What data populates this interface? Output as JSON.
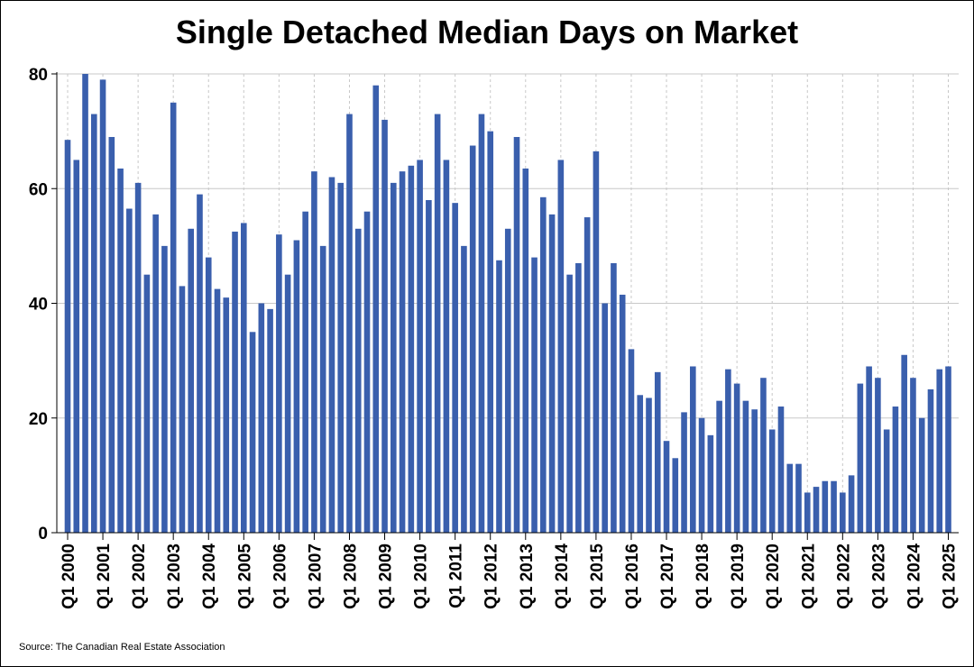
{
  "chart_data": {
    "type": "bar",
    "title": "Single Detached Median Days on Market",
    "xlabel": "",
    "ylabel": "",
    "ylim": [
      0,
      80
    ],
    "yticks": [
      0,
      20,
      40,
      60,
      80
    ],
    "grid": true,
    "bar_color": "#3a5fad",
    "x_tick_labels": [
      "Q1 2000",
      "Q1 2001",
      "Q1 2002",
      "Q1 2003",
      "Q1 2004",
      "Q1 2005",
      "Q1 2006",
      "Q1 2007",
      "Q1 2008",
      "Q1 2009",
      "Q1 2010",
      "Q1 2011",
      "Q1 2012",
      "Q1 2013",
      "Q1 2014",
      "Q1 2015",
      "Q1 2016",
      "Q1 2017",
      "Q1 2018",
      "Q1 2019",
      "Q1 2020",
      "Q1 2021",
      "Q1 2022",
      "Q1 2023",
      "Q1 2024",
      "Q1 2025"
    ],
    "values": [
      68.5,
      65,
      80,
      73,
      79,
      69,
      63.5,
      56.5,
      61,
      45,
      55.5,
      50,
      75,
      43,
      53,
      59,
      48,
      42.5,
      41,
      52.5,
      54,
      35,
      40,
      39,
      52,
      45,
      51,
      56,
      63,
      50,
      62,
      61,
      73,
      53,
      56,
      78,
      72,
      61,
      63,
      64,
      65,
      58,
      73,
      65,
      57.5,
      50,
      67.5,
      73,
      70,
      47.5,
      53,
      69,
      63.5,
      48,
      58.5,
      55.5,
      65,
      45,
      47,
      55,
      66.5,
      40,
      47,
      41.5,
      32,
      24,
      23.5,
      28,
      16,
      13,
      21,
      29,
      20,
      17,
      23,
      28.5,
      26,
      23,
      21.5,
      27,
      18,
      22,
      12,
      12,
      7,
      8,
      9,
      9,
      7,
      10,
      26,
      29,
      27,
      18,
      22,
      31,
      27,
      20,
      25,
      28.5,
      29
    ]
  },
  "source": "Source: The Canadian Real Estate Association"
}
